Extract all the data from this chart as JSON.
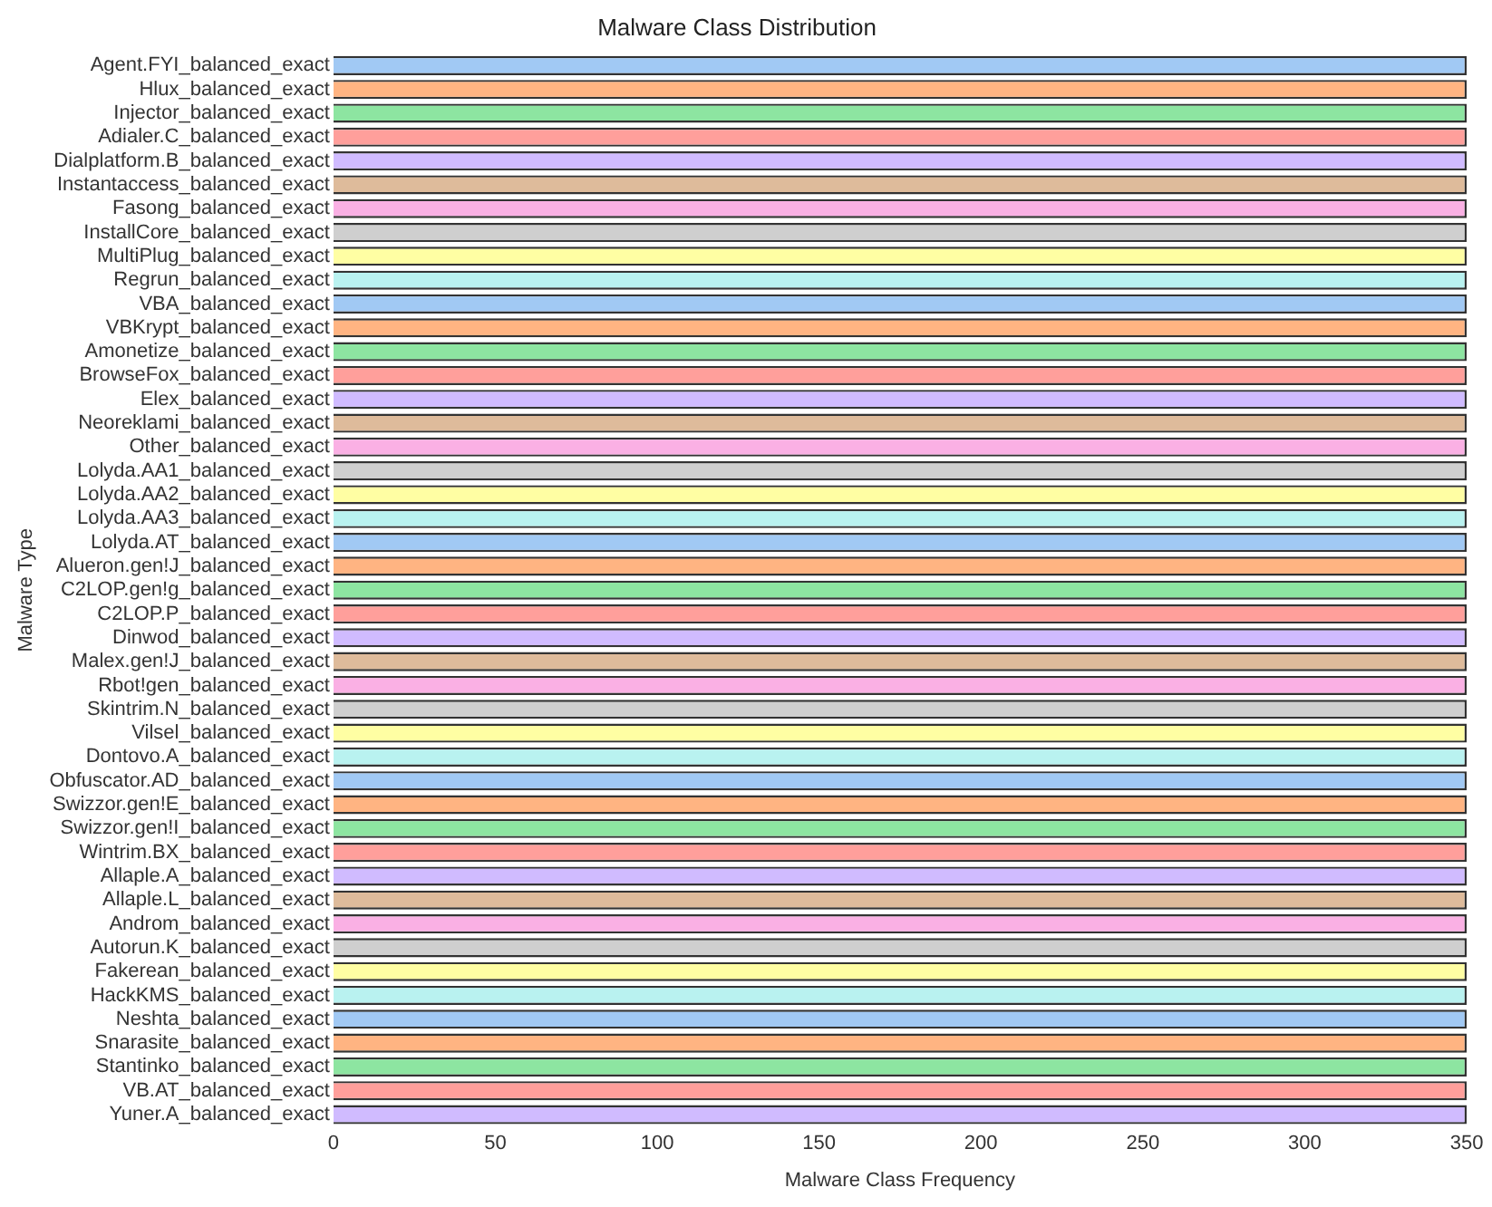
{
  "chart_data": {
    "type": "bar",
    "orientation": "horizontal",
    "title": "Malware Class Distribution",
    "xlabel": "Malware Class Frequency",
    "ylabel": "Malware Type",
    "categories": [
      "Agent.FYI_balanced_exact",
      "Hlux_balanced_exact",
      "Injector_balanced_exact",
      "Adialer.C_balanced_exact",
      "Dialplatform.B_balanced_exact",
      "Instantaccess_balanced_exact",
      "Fasong_balanced_exact",
      "InstallCore_balanced_exact",
      "MultiPlug_balanced_exact",
      "Regrun_balanced_exact",
      "VBA_balanced_exact",
      "VBKrypt_balanced_exact",
      "Amonetize_balanced_exact",
      "BrowseFox_balanced_exact",
      "Elex_balanced_exact",
      "Neoreklami_balanced_exact",
      "Other_balanced_exact",
      "Lolyda.AA1_balanced_exact",
      "Lolyda.AA2_balanced_exact",
      "Lolyda.AA3_balanced_exact",
      "Lolyda.AT_balanced_exact",
      "Alueron.gen!J_balanced_exact",
      "C2LOP.gen!g_balanced_exact",
      "C2LOP.P_balanced_exact",
      "Dinwod_balanced_exact",
      "Malex.gen!J_balanced_exact",
      "Rbot!gen_balanced_exact",
      "Skintrim.N_balanced_exact",
      "Vilsel_balanced_exact",
      "Dontovo.A_balanced_exact",
      "Obfuscator.AD_balanced_exact",
      "Swizzor.gen!E_balanced_exact",
      "Swizzor.gen!I_balanced_exact",
      "Wintrim.BX_balanced_exact",
      "Allaple.A_balanced_exact",
      "Allaple.L_balanced_exact",
      "Androm_balanced_exact",
      "Autorun.K_balanced_exact",
      "Fakerean_balanced_exact",
      "HackKMS_balanced_exact",
      "Neshta_balanced_exact",
      "Snarasite_balanced_exact",
      "Stantinko_balanced_exact",
      "VB.AT_balanced_exact",
      "Yuner.A_balanced_exact"
    ],
    "values": [
      350,
      350,
      350,
      350,
      350,
      350,
      350,
      350,
      350,
      350,
      350,
      350,
      350,
      350,
      350,
      350,
      350,
      350,
      350,
      350,
      350,
      350,
      350,
      350,
      350,
      350,
      350,
      350,
      350,
      350,
      350,
      350,
      350,
      350,
      350,
      350,
      350,
      350,
      350,
      350,
      350,
      350,
      350,
      350,
      350
    ],
    "colors": [
      "#a1c9f4",
      "#ffb482",
      "#8de5a1",
      "#ff9f9b",
      "#d0bbff",
      "#debb9b",
      "#fab0e4",
      "#cfcfcf",
      "#fffea3",
      "#b9f2f0",
      "#a1c9f4",
      "#ffb482",
      "#8de5a1",
      "#ff9f9b",
      "#d0bbff",
      "#debb9b",
      "#fab0e4",
      "#cfcfcf",
      "#fffea3",
      "#b9f2f0",
      "#a1c9f4",
      "#ffb482",
      "#8de5a1",
      "#ff9f9b",
      "#d0bbff",
      "#debb9b",
      "#fab0e4",
      "#cfcfcf",
      "#fffea3",
      "#b9f2f0",
      "#a1c9f4",
      "#ffb482",
      "#8de5a1",
      "#ff9f9b",
      "#d0bbff",
      "#debb9b",
      "#fab0e4",
      "#cfcfcf",
      "#fffea3",
      "#b9f2f0",
      "#a1c9f4",
      "#ffb482",
      "#8de5a1",
      "#ff9f9b",
      "#d0bbff"
    ],
    "xlim": [
      0,
      350
    ],
    "xticks": [
      0,
      50,
      100,
      150,
      200,
      250,
      300,
      350
    ],
    "grid": false,
    "legend": false
  }
}
